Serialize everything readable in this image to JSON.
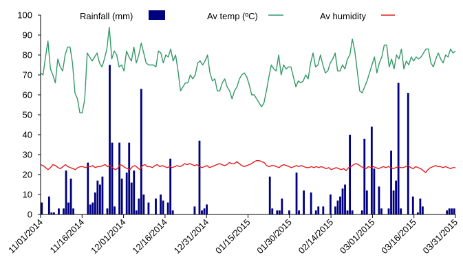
{
  "chart_data": {
    "type": "bar+line",
    "ylim": [
      0,
      100
    ],
    "y_ticks": [
      "0",
      "10",
      "20",
      "30",
      "40",
      "50",
      "60",
      "70",
      "80",
      "90",
      "100"
    ],
    "x_ticks": [
      "11/01/2014",
      "11/16/2014",
      "12/01/2014",
      "12/16/2014",
      "12/31/2014",
      "01/15/2015",
      "01/30/2015",
      "02/14/2015",
      "03/01/2015",
      "03/16/2015",
      "03/31/2015"
    ],
    "x_range_days": [
      0,
      150
    ],
    "legend": {
      "placement": "top"
    },
    "colors": {
      "rainfall": "#000080",
      "temp": "#339966",
      "humidity": "#e21b1b"
    },
    "series": [
      {
        "name": "Rainfall (mm)",
        "kind": "bar",
        "values": [
          6,
          0,
          0,
          9,
          1,
          1,
          0,
          3,
          0,
          3,
          22,
          6,
          18,
          3,
          0,
          0,
          0,
          0,
          0,
          26,
          5,
          6,
          11,
          17,
          15,
          19,
          0,
          3,
          75,
          36,
          4,
          0,
          36,
          18,
          0,
          21,
          36,
          16,
          22,
          2,
          8,
          63,
          10,
          0,
          6,
          0,
          0,
          8,
          0,
          10,
          7,
          0,
          6,
          28,
          2,
          0,
          0,
          0,
          0,
          0,
          0,
          0,
          0,
          4,
          0,
          37,
          2,
          3,
          5,
          0,
          0,
          0,
          0,
          0,
          0,
          0,
          0,
          0,
          0,
          0,
          0,
          0,
          0,
          0,
          0,
          0,
          0,
          0,
          0,
          0,
          0,
          0,
          0,
          0,
          19,
          3,
          0,
          2,
          2,
          8,
          0,
          0,
          2,
          0,
          0,
          21,
          2,
          0,
          12,
          0,
          0,
          11,
          0,
          2,
          4,
          0,
          4,
          0,
          0,
          10,
          0,
          4,
          7,
          9,
          13,
          15,
          2,
          40,
          2,
          0,
          0,
          0,
          2,
          38,
          12,
          0,
          44,
          23,
          0,
          14,
          3,
          0,
          0,
          3,
          32,
          12,
          17,
          66,
          3,
          0,
          0,
          61,
          0,
          9,
          0,
          1,
          8,
          4,
          0,
          0,
          0,
          0,
          0,
          0,
          0,
          0,
          0,
          2,
          3,
          3,
          3
        ]
      },
      {
        "name": "Av temp (ºC)",
        "kind": "line",
        "values": [
          71,
          70,
          79,
          87,
          73,
          70,
          66,
          78,
          74,
          72,
          80,
          84,
          84,
          76,
          61,
          58,
          51,
          51,
          58,
          81,
          79,
          77,
          79,
          81,
          76,
          74,
          78,
          83,
          94,
          78,
          82,
          80,
          74,
          75,
          72,
          82,
          79,
          77,
          84,
          76,
          80,
          86,
          81,
          76,
          75,
          75,
          75,
          74,
          82,
          81,
          76,
          80,
          79,
          83,
          77,
          80,
          72,
          62,
          64,
          66,
          66,
          70,
          68,
          70,
          76,
          77,
          75,
          77,
          80,
          71,
          67,
          68,
          62,
          62,
          66,
          68,
          64,
          62,
          58,
          62,
          64,
          68,
          70,
          71,
          69,
          65,
          60,
          60,
          58,
          56,
          54,
          56,
          62,
          69,
          75,
          73,
          72,
          80,
          70,
          75,
          73,
          74,
          74,
          69,
          64,
          67,
          66,
          67,
          70,
          68,
          76,
          81,
          74,
          75,
          80,
          75,
          71,
          72,
          76,
          78,
          81,
          72,
          72,
          75,
          73,
          78,
          80,
          88,
          82,
          72,
          62,
          61,
          64,
          67,
          71,
          75,
          79,
          71,
          76,
          79,
          85,
          85,
          74,
          78,
          73,
          80,
          78,
          83,
          73,
          77,
          75,
          79,
          77,
          79,
          78,
          79,
          81,
          83,
          83,
          76,
          74,
          78,
          81,
          78,
          76,
          80,
          79,
          83,
          81,
          82
        ]
      },
      {
        "name": "Av  humidity",
        "kind": "line",
        "values": [
          25,
          24.5,
          23.5,
          22.5,
          23.5,
          25,
          24.5,
          23.5,
          23,
          24,
          25,
          24,
          23.5,
          23,
          22.5,
          23.5,
          24,
          24,
          23.5,
          24,
          24,
          24.5,
          23.5,
          24,
          24,
          24.5,
          25,
          24,
          24.5,
          23.5,
          22.5,
          23,
          25,
          24.5,
          23.5,
          23,
          22.5,
          24,
          24.5,
          23.5,
          22.5,
          24.5,
          25,
          24,
          24,
          23.5,
          24.5,
          25,
          24,
          24.5,
          24,
          23.5,
          24,
          23.5,
          24,
          24.5,
          24,
          24.5,
          25.5,
          25,
          25.5,
          25,
          24.5,
          25,
          24,
          23.5,
          24,
          24.5,
          23.5,
          24,
          24.5,
          25,
          25.5,
          25,
          24.5,
          25,
          26,
          25.5,
          25.5,
          26.5,
          25.5,
          24.5,
          24,
          24.5,
          25,
          25.5,
          26.5,
          27,
          27,
          26.5,
          26,
          24.5,
          24,
          24.5,
          24.5,
          24,
          23.5,
          24.5,
          25,
          24.5,
          24,
          23.5,
          24,
          24.5,
          24,
          24.5,
          24,
          23.5,
          23.5,
          24,
          23.5,
          24,
          23.5,
          24,
          23.5,
          23,
          23.5,
          22.5,
          23,
          23.5,
          23,
          22.5,
          23,
          22,
          23.5,
          24,
          25,
          25.5,
          25,
          24,
          23.5,
          23,
          24,
          23.5,
          24,
          23.5,
          23,
          23.5,
          24,
          23.5,
          24,
          23.5,
          23,
          23.5,
          24,
          23.5,
          23.5,
          24,
          24.5,
          23.5,
          23,
          24,
          23.5,
          23,
          22,
          21,
          22.5,
          23.5,
          24,
          24.5,
          24,
          24,
          23.5,
          24,
          23.5,
          23,
          23.5,
          23.5
        ]
      }
    ]
  }
}
